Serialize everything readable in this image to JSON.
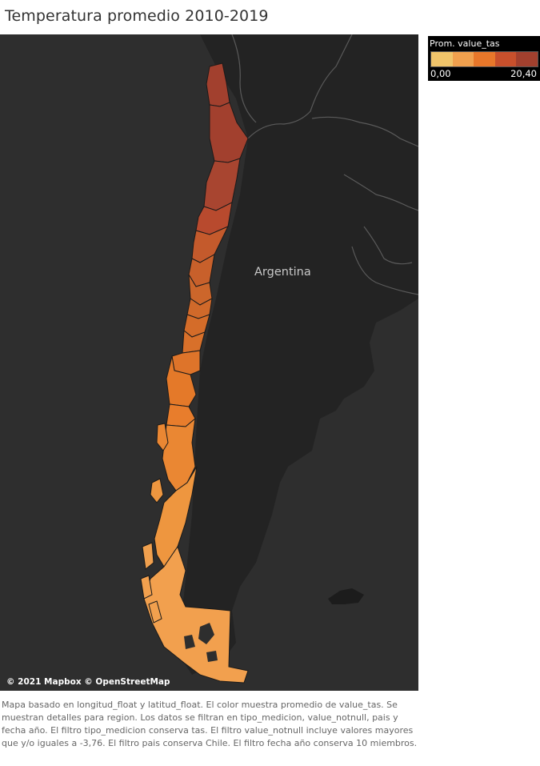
{
  "title": "Temperatura promedio 2010-2019",
  "map": {
    "attribution": "© 2021 Mapbox © OpenStreetMap",
    "country_label": "Argentina",
    "background_color": "#2e2e2e",
    "land_color": "#232323"
  },
  "legend": {
    "title": "Prom. value_tas",
    "min": "0,00",
    "max": "20,40",
    "ramp_colors": [
      "#f0c46a",
      "#f0a04e",
      "#e8772a",
      "#c8502c",
      "#a2402e"
    ]
  },
  "caption": "Mapa basado en longitud_float y latitud_float.  El color muestra promedio de value_tas.  Se muestran detalles para region. Los datos se filtran en tipo_medicion, value_notnull, pais y fecha año. El filtro tipo_medicion conserva tas. El filtro value_notnull incluye valores mayores que y/o iguales a -3,76. El filtro pais conserva Chile. El filtro fecha año conserva 10 miembros."
}
